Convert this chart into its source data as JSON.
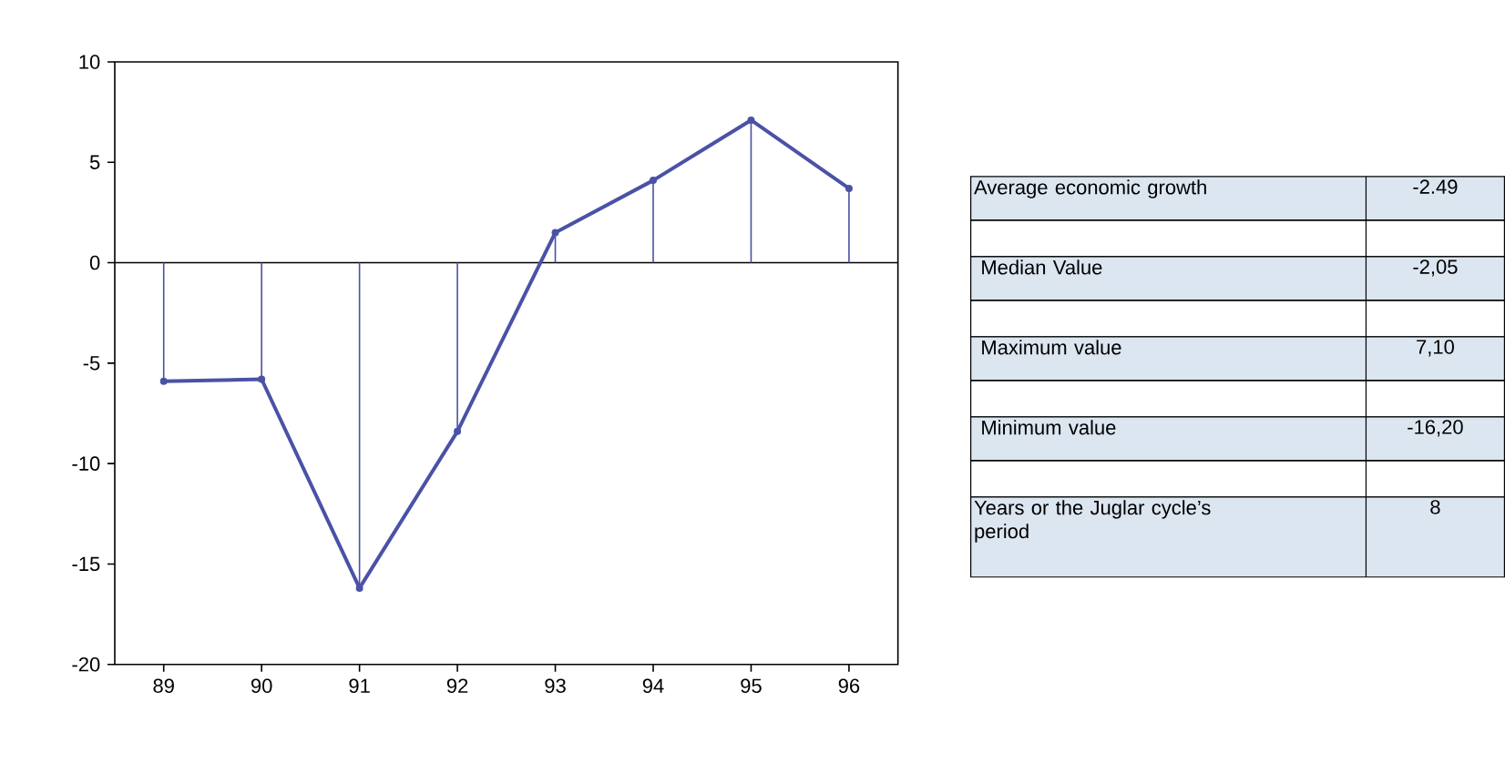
{
  "chart_data": [
    {
      "type": "line",
      "categories": [
        "89",
        "90",
        "91",
        "92",
        "93",
        "94",
        "95",
        "96"
      ],
      "series": [
        {
          "type": "lollipop",
          "marker": "circle",
          "color": "#4a52a6",
          "values": [
            -5.9,
            -5.8,
            -16.2,
            -8.4,
            1.5,
            4.1,
            7.1,
            3.7
          ]
        },
        {
          "color": "#4a52a6",
          "values": [
            -5.9,
            -5.8,
            -16.2,
            -8.4,
            1.5,
            4.1,
            7.1,
            3.7
          ]
        }
      ],
      "ylim": [
        -20,
        10
      ],
      "yticks": [
        -20,
        -15,
        -10,
        -5,
        0,
        5,
        10
      ],
      "ref_lines": [
        {
          "axis": "y",
          "value": 0,
          "color": "#000000"
        }
      ]
    },
    {
      "type": "other",
      "annotations": [
        "Average economic growth",
        "-2.49",
        " Median Value",
        "-2,05",
        " Maximum value",
        "7,10",
        " Minimum value",
        "-16,20",
        "Years or the Juglar cycle’s period",
        "8"
      ]
    }
  ]
}
